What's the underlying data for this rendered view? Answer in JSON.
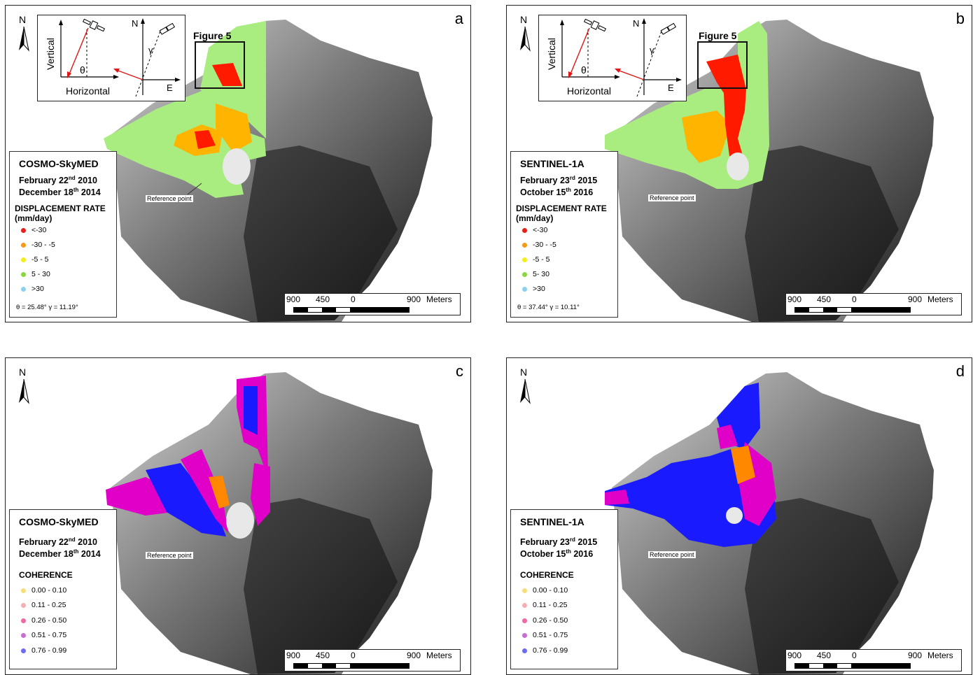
{
  "panels": {
    "a": {
      "letter": "a",
      "satellite": "COSMO-SkyMED",
      "date1_prefix": "February 22",
      "date1_sup": "nd",
      "date1_suffix": " 2010",
      "date2_prefix": "December 18",
      "date2_sup": "th",
      "date2_suffix": " 2014",
      "legend_title_1": "DISPLACEMENT RATE",
      "legend_title_2": "(mm/day)",
      "items": [
        "<-30",
        "-30 - -5",
        "-5 - 5",
        "5 - 30",
        ">30"
      ],
      "angles": "θ = 25.48° γ = 11.19°",
      "figure_label": "Figure 5",
      "ref_point": "Reference point"
    },
    "b": {
      "letter": "b",
      "satellite": "SENTINEL-1A",
      "date1_prefix": "February 23",
      "date1_sup": "rd",
      "date1_suffix": " 2015",
      "date2_prefix": "October 15",
      "date2_sup": "th",
      "date2_suffix": " 2016",
      "legend_title_1": "DISPLACEMENT RATE",
      "legend_title_2": "(mm/day)",
      "items": [
        "<-30",
        "-30 - -5",
        "-5 - 5",
        "5- 30",
        ">30"
      ],
      "angles": "θ = 37.44° γ = 10.11°",
      "figure_label": "Figure 5",
      "ref_point": "Reference point"
    },
    "c": {
      "letter": "c",
      "satellite": "COSMO-SkyMED",
      "date1_prefix": "February 22",
      "date1_sup": "nd",
      "date1_suffix": " 2010",
      "date2_prefix": "December 18",
      "date2_sup": "th",
      "date2_suffix": " 2014",
      "legend_title_1": "COHERENCE",
      "items": [
        "0.00 - 0.10",
        "0.11 - 0.25",
        "0.26 - 0.50",
        "0.51 - 0.75",
        "0.76 - 0.99"
      ],
      "ref_point": "Reference point"
    },
    "d": {
      "letter": "d",
      "satellite": "SENTINEL-1A",
      "date1_prefix": "February 23",
      "date1_sup": "rd",
      "date1_suffix": " 2015",
      "date2_prefix": "October 15",
      "date2_sup": "th",
      "date2_suffix": " 2016",
      "legend_title_1": "COHERENCE",
      "items": [
        "0.00 - 0.10",
        "0.11 - 0.25",
        "0.26 - 0.50",
        "0.51 - 0.75",
        "0.76 - 0.99"
      ],
      "ref_point": "Reference point"
    }
  },
  "common": {
    "north": "N",
    "inset_vertical": "Vertical",
    "inset_horizontal": "Horizontal",
    "inset_theta": "θ",
    "inset_gamma": "γ",
    "inset_n": "N",
    "inset_e": "E",
    "scale_900_left": "900",
    "scale_450": "450",
    "scale_0": "0",
    "scale_900_right": "900",
    "scale_unit": "Meters"
  },
  "colors": {
    "displacement": [
      "#e8201b",
      "#f59a18",
      "#f3ee1e",
      "#8bd640",
      "#8fd0ee"
    ],
    "coherence": [
      "#f8de7a",
      "#f5aeb2",
      "#f06aa3",
      "#c86ed0",
      "#6b6cf2"
    ],
    "map_red": "#ff1a00",
    "map_orange": "#ffb400",
    "map_green": "#a9ec80",
    "map_blue": "#1a1aff",
    "map_magenta": "#e000c8",
    "vector_red": "#e01515"
  }
}
